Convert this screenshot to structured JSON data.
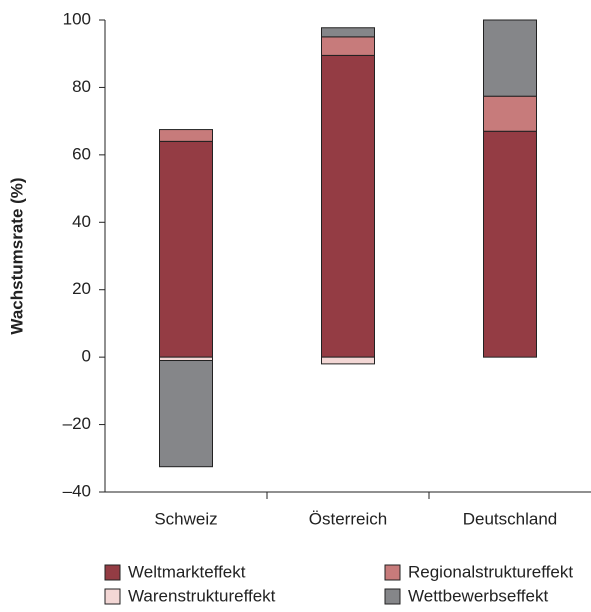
{
  "chart_data": {
    "type": "stacked_bar",
    "y_label": "Wachstumsrate (%)",
    "categories": [
      "Schweiz",
      "Österreich",
      "Deutschland"
    ],
    "series": [
      {
        "name": "Weltmarkteffekt",
        "color": "#943c44",
        "values": [
          64,
          89.5,
          67
        ]
      },
      {
        "name": "Regionalstruktureffekt",
        "color": "#c77b7b",
        "values": [
          3.5,
          5.5,
          10.4
        ]
      },
      {
        "name": "Warenstruktureffekt",
        "color": "#f3d7d5",
        "values": [
          -1,
          -2,
          0
        ]
      },
      {
        "name": "Wettbewerbseffekt",
        "color": "#858689",
        "values": [
          -31.5,
          2.7,
          22.6
        ]
      }
    ],
    "ylim": [
      -40,
      100
    ],
    "yticks": [
      {
        "value": -40,
        "label": "–40"
      },
      {
        "value": -20,
        "label": "–20"
      },
      0,
      20,
      40,
      60,
      80,
      100
    ]
  }
}
